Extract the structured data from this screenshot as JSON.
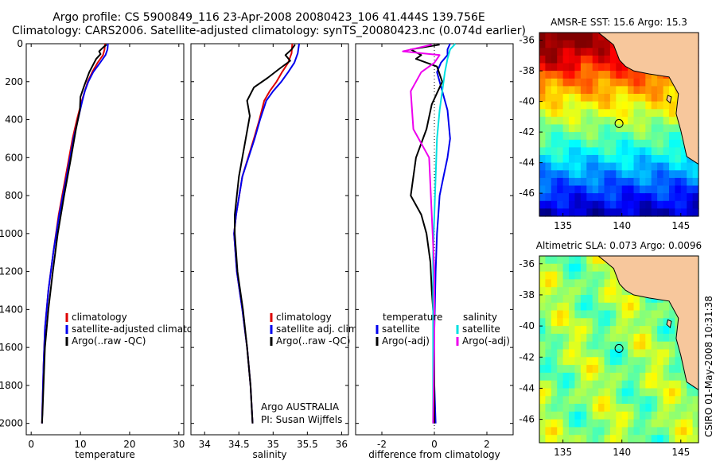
{
  "header": {
    "title_line1": "Argo profile: CS 5900849_116 23-Apr-2008 20080423_106 41.444S 139.756E",
    "title_line2": "Climatology: CARS2006. Satellite-adjusted climatology: synTS_20080423.nc (0.074d earlier)"
  },
  "credit": {
    "argo": "Argo AUSTRALIA",
    "pi": "PI: Susan Wijffels",
    "stamp": "CSIRO 01-May-2008 10:31:38"
  },
  "colors": {
    "climatology": "#dd0000",
    "satellite": "#0000ee",
    "argo": "#000000",
    "salinity_satellite": "#00e0e0",
    "salinity_argo": "#ee00ee",
    "land": "#f7c79c"
  },
  "chart_data": [
    {
      "type": "line",
      "xlabel": "temperature",
      "ylabel": "",
      "xlim": [
        -1,
        31
      ],
      "ylim": [
        2060,
        0
      ],
      "xticks": [
        "0",
        "10",
        "20",
        "30"
      ],
      "yticks": [
        "0",
        "200",
        "400",
        "600",
        "800",
        "1000",
        "1200",
        "1400",
        "1600",
        "1800",
        "2000"
      ],
      "legend": [
        "climatology",
        "satellite-adjusted climatology",
        "Argo(..raw -QC)"
      ],
      "legend_position": "lower-right",
      "series": [
        {
          "name": "climatology",
          "color_key": "climatology",
          "x": [
            15.0,
            14.9,
            14.6,
            13.5,
            12.4,
            11.5,
            10.9,
            10.3,
            9.3,
            8.4,
            7.0,
            5.6,
            4.5,
            3.5,
            2.8,
            2.5,
            2.3,
            2.2
          ],
          "y": [
            0,
            30,
            60,
            100,
            150,
            200,
            250,
            300,
            400,
            500,
            700,
            900,
            1100,
            1300,
            1500,
            1700,
            1900,
            2000
          ]
        },
        {
          "name": "satellite-adjusted climatology",
          "color_key": "satellite",
          "x": [
            15.6,
            15.5,
            15.1,
            14.0,
            12.6,
            11.6,
            10.9,
            10.4,
            9.5,
            8.6,
            7.2,
            5.7,
            4.5,
            3.5,
            2.8,
            2.5,
            2.3,
            2.2
          ],
          "y": [
            0,
            30,
            60,
            100,
            150,
            200,
            250,
            300,
            400,
            500,
            700,
            900,
            1100,
            1300,
            1500,
            1700,
            1900,
            2000
          ]
        },
        {
          "name": "Argo(..raw -QC)",
          "color_key": "argo",
          "x": [
            15.3,
            14.6,
            13.8,
            14.1,
            13.2,
            11.8,
            10.8,
            10.0,
            9.9,
            9.1,
            8.1,
            6.7,
            5.4,
            4.4,
            3.5,
            2.8,
            2.5,
            2.3,
            2.2
          ],
          "y": [
            5,
            20,
            40,
            55,
            80,
            150,
            220,
            280,
            350,
            450,
            600,
            800,
            1000,
            1200,
            1400,
            1600,
            1800,
            1950,
            2000
          ]
        }
      ]
    },
    {
      "type": "line",
      "xlabel": "salinity",
      "ylabel": "",
      "xlim": [
        33.8,
        36.1
      ],
      "ylim": [
        2060,
        0
      ],
      "xticks": [
        "34",
        "34.5",
        "35",
        "35.5",
        "36"
      ],
      "yticks": [],
      "legend": [
        "climatology",
        "satellite adj. clim.",
        "Argo(..raw -QC)"
      ],
      "legend_position": "lower-right",
      "series": [
        {
          "name": "climatology",
          "color_key": "climatology",
          "x": [
            35.28,
            35.27,
            35.22,
            35.13,
            35.05,
            34.95,
            34.87,
            34.8,
            34.72,
            34.55,
            34.46,
            34.43,
            34.47,
            34.55,
            34.62,
            34.67,
            34.7
          ],
          "y": [
            0,
            50,
            100,
            150,
            200,
            250,
            300,
            400,
            500,
            700,
            900,
            1000,
            1200,
            1400,
            1600,
            1800,
            2000
          ]
        },
        {
          "name": "satellite adj. clim.",
          "color_key": "satellite",
          "x": [
            35.38,
            35.36,
            35.31,
            35.22,
            35.12,
            35.0,
            34.9,
            34.81,
            34.73,
            34.55,
            34.46,
            34.43,
            34.47,
            34.55,
            34.62,
            34.67,
            34.7
          ],
          "y": [
            0,
            50,
            100,
            150,
            200,
            250,
            300,
            400,
            500,
            700,
            900,
            1000,
            1200,
            1400,
            1600,
            1800,
            2000
          ]
        },
        {
          "name": "Argo(..raw -QC)",
          "color_key": "argo",
          "x": [
            35.32,
            35.27,
            35.18,
            35.25,
            35.1,
            34.92,
            34.72,
            34.62,
            34.66,
            34.6,
            34.5,
            34.44,
            34.44,
            34.48,
            34.56,
            34.62,
            34.67,
            34.7
          ],
          "y": [
            5,
            30,
            60,
            90,
            130,
            180,
            230,
            300,
            380,
            500,
            700,
            900,
            1000,
            1200,
            1400,
            1600,
            1800,
            2000
          ]
        }
      ]
    },
    {
      "type": "line",
      "xlabel": "difference from climatology",
      "ylabel": "",
      "xlim": [
        -3,
        3
      ],
      "ylim": [
        2060,
        0
      ],
      "xticks": [
        "-2",
        "0",
        "2"
      ],
      "yticks": [],
      "legend_groups": [
        {
          "title": "temperature",
          "entries": [
            "satellite",
            "Argo(-adj)"
          ]
        },
        {
          "title": "salinity",
          "entries": [
            "satellite",
            "Argo(-adj)"
          ]
        }
      ],
      "legend_position": "lower-right",
      "reference_line_x": 0,
      "series": [
        {
          "name": "temperature satellite",
          "color_key": "satellite",
          "x": [
            0.6,
            0.5,
            0.5,
            0.25,
            0.1,
            0.3,
            0.5,
            0.6,
            0.5,
            0.35,
            0.2,
            0.15,
            0.1,
            0.05,
            0.0,
            0.0,
            0.05
          ],
          "y": [
            0,
            30,
            60,
            100,
            150,
            250,
            350,
            500,
            600,
            700,
            800,
            900,
            1000,
            1200,
            1500,
            1800,
            2000
          ]
        },
        {
          "name": "temperature Argo(-adj)",
          "color_key": "argo",
          "x": [
            0.2,
            -0.9,
            -0.5,
            -0.7,
            0.1,
            0.3,
            -0.1,
            -0.3,
            -0.7,
            -0.9,
            -0.5,
            -0.3,
            -0.15,
            -0.1,
            0.0,
            0.0
          ],
          "y": [
            5,
            30,
            60,
            80,
            120,
            200,
            320,
            450,
            600,
            800,
            900,
            1000,
            1150,
            1300,
            1500,
            2000
          ]
        },
        {
          "name": "salinity satellite",
          "color_key": "salinity_satellite",
          "x": [
            0.8,
            0.6,
            0.5,
            0.4,
            0.3,
            0.2,
            0.1,
            0.05,
            0.0,
            -0.05,
            -0.05,
            -0.05
          ],
          "y": [
            0,
            30,
            80,
            150,
            250,
            350,
            500,
            700,
            900,
            1100,
            1500,
            2000
          ]
        },
        {
          "name": "salinity Argo(-adj)",
          "color_key": "salinity_argo",
          "x": [
            -0.1,
            -1.2,
            0.2,
            0.0,
            -0.5,
            -0.9,
            -0.8,
            -0.2,
            -0.1,
            0.0,
            0.0,
            -0.05
          ],
          "y": [
            5,
            40,
            60,
            100,
            150,
            250,
            450,
            600,
            900,
            1200,
            1600,
            2000
          ]
        }
      ]
    },
    {
      "type": "heatmap",
      "title": "AMSR-E SST: 15.6 Argo: 15.3",
      "variable": "SST",
      "xlim": [
        133,
        146.5
      ],
      "ylim": [
        -47.5,
        -35.5
      ],
      "xticks": [
        "135",
        "140",
        "145"
      ],
      "yticks": [
        "-36",
        "-38",
        "-40",
        "-42",
        "-44",
        "-46"
      ],
      "marker": {
        "lon": 139.756,
        "lat": -41.444
      },
      "colormap": "jet"
    },
    {
      "type": "heatmap",
      "title": "Altimetric SLA: 0.073 Argo: 0.0096",
      "variable": "SLA",
      "xlim": [
        133,
        146.5
      ],
      "ylim": [
        -47.5,
        -35.5
      ],
      "xticks": [
        "135",
        "140",
        "145"
      ],
      "yticks": [
        "-36",
        "-38",
        "-40",
        "-42",
        "-44",
        "-46"
      ],
      "marker": {
        "lon": 139.756,
        "lat": -41.444
      },
      "colormap": "jet"
    }
  ]
}
